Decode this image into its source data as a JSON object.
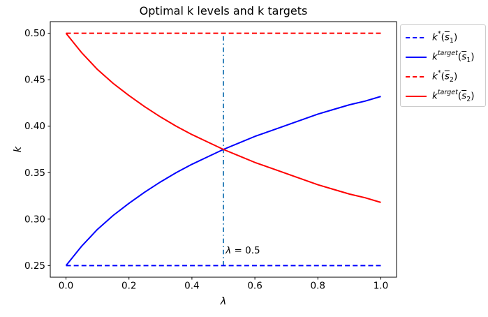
{
  "figure": {
    "background": "#ffffff"
  },
  "colors": {
    "blue_series": "#0000ff",
    "red_series": "#ff0000",
    "vline": "#1f77b4",
    "axes_frame": "#000000",
    "legend_border": "#cccccc"
  },
  "chart_data": {
    "type": "line",
    "title": "Optimal k levels and k targets",
    "xlabel": "λ",
    "ylabel": "k",
    "xlim": [
      -0.05,
      1.05
    ],
    "ylim": [
      0.2375,
      0.5125
    ],
    "grid": false,
    "legend_position": "outside-right",
    "x_ticks": {
      "values": [
        0.0,
        0.2,
        0.4,
        0.6,
        0.8,
        1.0
      ],
      "labels": [
        "0.0",
        "0.2",
        "0.4",
        "0.6",
        "0.8",
        "1.0"
      ]
    },
    "y_ticks": {
      "values": [
        0.25,
        0.3,
        0.35,
        0.4,
        0.45,
        0.5
      ],
      "labels": [
        "0.25",
        "0.30",
        "0.35",
        "0.40",
        "0.45",
        "0.50"
      ]
    },
    "series": [
      {
        "name": "k*(s̄₁)",
        "color": "#0000ff",
        "linestyle": "dashed",
        "x": [
          0.0,
          1.0
        ],
        "y": [
          0.25,
          0.25
        ]
      },
      {
        "name": "k^target(s̄₁)",
        "color": "#0000ff",
        "linestyle": "solid",
        "x": [
          0.0,
          0.05,
          0.1,
          0.15,
          0.2,
          0.25,
          0.3,
          0.35,
          0.4,
          0.45,
          0.5,
          0.55,
          0.6,
          0.65,
          0.7,
          0.75,
          0.8,
          0.85,
          0.9,
          0.95,
          1.0
        ],
        "y": [
          0.25,
          0.271,
          0.289,
          0.304,
          0.317,
          0.329,
          0.34,
          0.35,
          0.359,
          0.367,
          0.375,
          0.382,
          0.389,
          0.395,
          0.401,
          0.407,
          0.413,
          0.418,
          0.423,
          0.427,
          0.432
        ]
      },
      {
        "name": "k*(s̄₂)",
        "color": "#ff0000",
        "linestyle": "dashed",
        "x": [
          0.0,
          1.0
        ],
        "y": [
          0.5,
          0.5
        ]
      },
      {
        "name": "k^target(s̄₂)",
        "color": "#ff0000",
        "linestyle": "solid",
        "x": [
          0.0,
          0.05,
          0.1,
          0.15,
          0.2,
          0.25,
          0.3,
          0.35,
          0.4,
          0.45,
          0.5,
          0.55,
          0.6,
          0.65,
          0.7,
          0.75,
          0.8,
          0.85,
          0.9,
          0.95,
          1.0
        ],
        "y": [
          0.5,
          0.479,
          0.461,
          0.446,
          0.433,
          0.421,
          0.41,
          0.4,
          0.391,
          0.383,
          0.375,
          0.368,
          0.361,
          0.355,
          0.349,
          0.343,
          0.337,
          0.332,
          0.327,
          0.323,
          0.318
        ]
      }
    ],
    "vline": {
      "x": 0.5,
      "ymin": 0.25,
      "ymax": 0.5,
      "color": "#1f77b4",
      "linestyle": "dashdot"
    },
    "annotation": {
      "symbol": "λ",
      "rest": " = 0.5",
      "x": 0.505,
      "y": 0.266
    },
    "legend": {
      "items": [
        {
          "plain": "k*(s̄₁)",
          "base": "k",
          "sup": "*",
          "arg": "s",
          "sub": "1",
          "color": "#0000ff",
          "linestyle": "dashed"
        },
        {
          "plain": "k^target(s̄₁)",
          "base": "k",
          "sup": "target",
          "arg": "s",
          "sub": "1",
          "color": "#0000ff",
          "linestyle": "solid"
        },
        {
          "plain": "k*(s̄₂)",
          "base": "k",
          "sup": "*",
          "arg": "s",
          "sub": "2",
          "color": "#ff0000",
          "linestyle": "dashed"
        },
        {
          "plain": "k^target(s̄₂)",
          "base": "k",
          "sup": "target",
          "arg": "s",
          "sub": "2",
          "color": "#ff0000",
          "linestyle": "solid"
        }
      ]
    }
  }
}
